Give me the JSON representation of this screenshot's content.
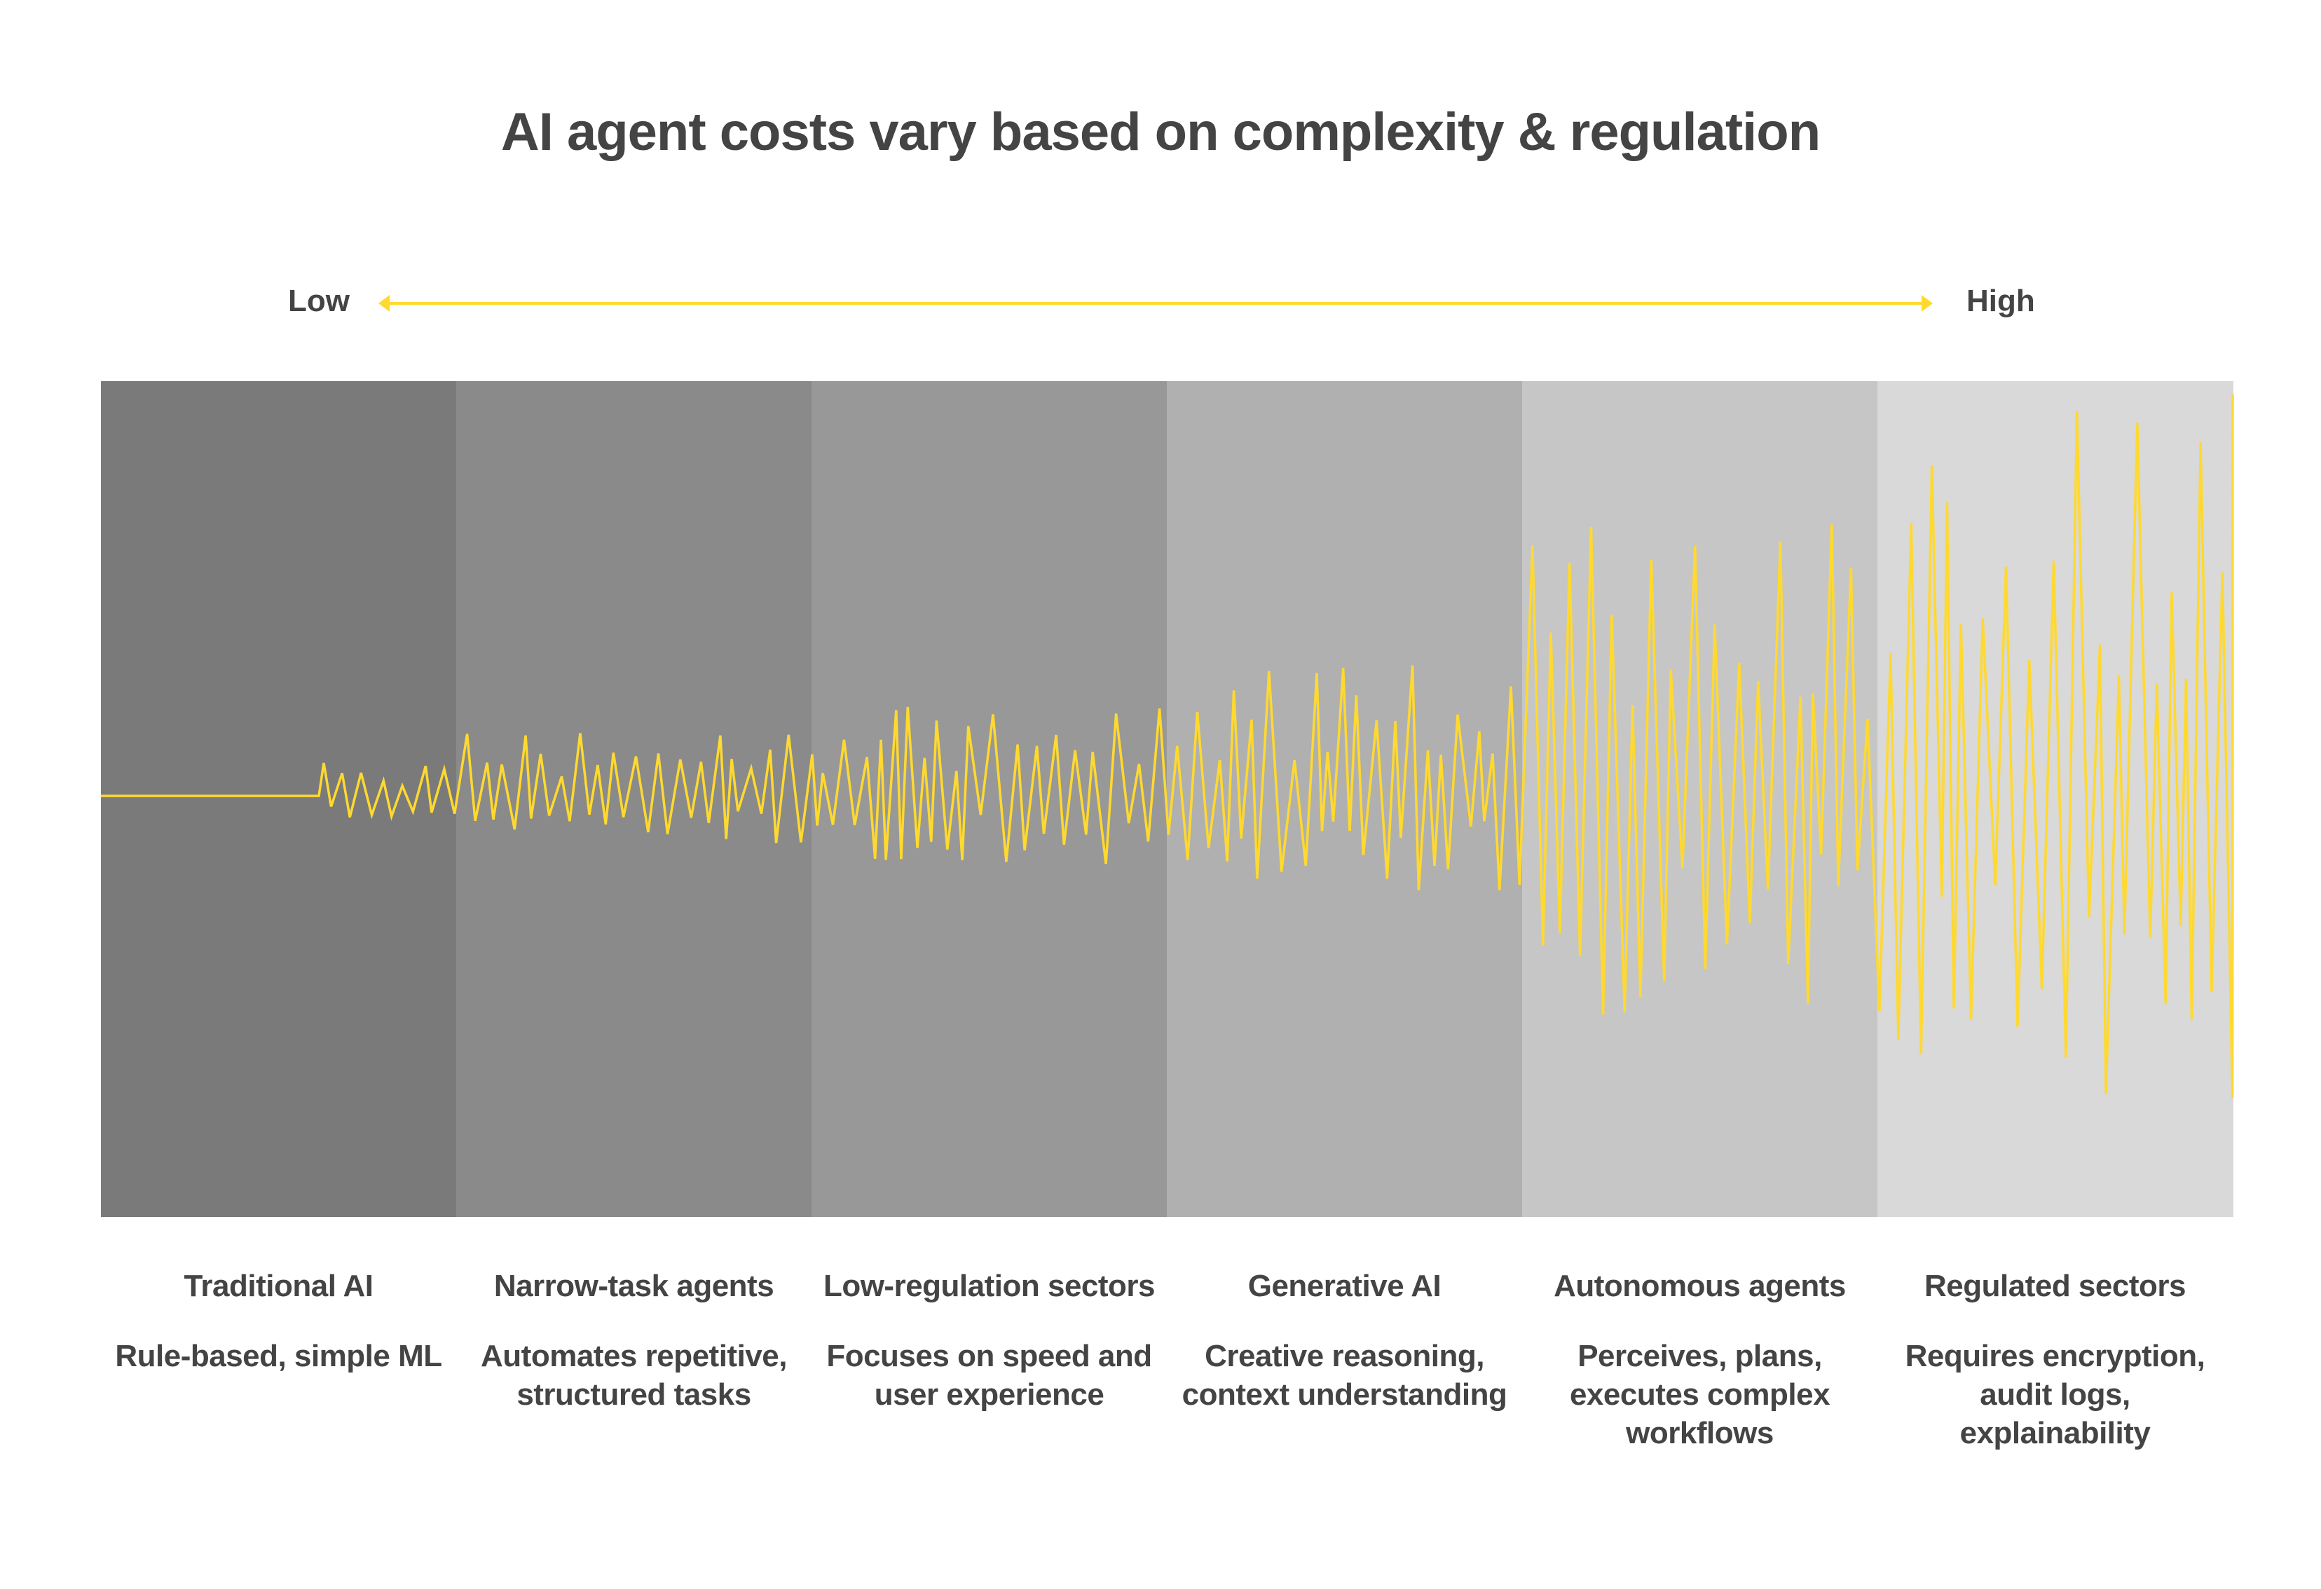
{
  "title": "AI agent costs vary based on complexity & regulation",
  "scale": {
    "low_label": "Low",
    "high_label": "High"
  },
  "colors": {
    "accent": "#ffd92f",
    "text": "#444444",
    "band_colors": [
      "#7a7a7a",
      "#8a8a8a",
      "#989898",
      "#b0b0b0",
      "#c6c6c6",
      "#d9d9d9"
    ]
  },
  "segments": [
    {
      "heading": "Traditional AI",
      "description": "Rule-based, simple ML"
    },
    {
      "heading": "Narrow-task agents",
      "description": "Automates repetitive, structured tasks"
    },
    {
      "heading": "Low-regulation sectors",
      "description": "Focuses on speed and user experience"
    },
    {
      "heading": "Generative AI",
      "description": "Creative reasoning, context understanding"
    },
    {
      "heading": "Autonomous agents",
      "description": "Perceives, plans, executes complex workflows"
    },
    {
      "heading": "Regulated sectors",
      "description": "Requires encryption, audit logs, explainability"
    }
  ]
}
